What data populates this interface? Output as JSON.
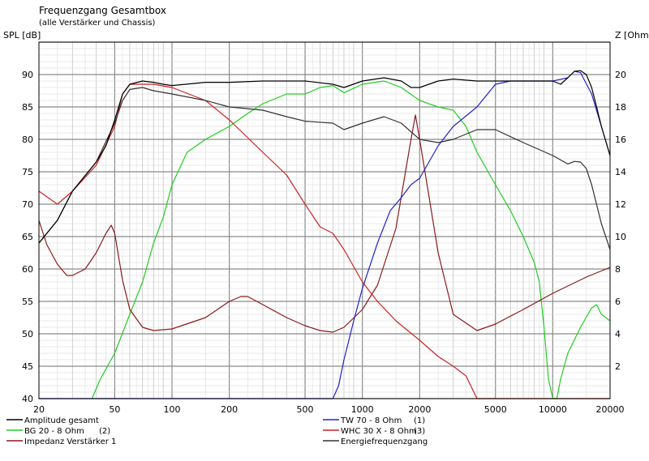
{
  "chart_data": {
    "type": "line",
    "title": "Frequenzgang Gesamtbox",
    "subtitle": "(alle Verstärker und Chassis)",
    "x_scale": "log",
    "xlim": [
      20,
      20000
    ],
    "x_ticks": [
      20,
      50,
      100,
      200,
      500,
      1000,
      2000,
      5000,
      10000,
      20000
    ],
    "y_left": {
      "label": "SPL [dB]",
      "lim": [
        40,
        95
      ],
      "ticks": [
        40,
        45,
        50,
        55,
        60,
        65,
        70,
        75,
        80,
        85,
        90
      ]
    },
    "y_right": {
      "label": "Z [Ohm]",
      "lim": [
        0,
        22
      ],
      "ticks": [
        2,
        4,
        6,
        8,
        10,
        12,
        14,
        16,
        18,
        20
      ]
    },
    "grid": true,
    "legend_position": "bottom",
    "series": [
      {
        "name": "Amplitude gesamt",
        "color": "#000000",
        "axis": "left",
        "prefix": "",
        "suffix": "",
        "points": [
          [
            20,
            64
          ],
          [
            25,
            67.5
          ],
          [
            30,
            72
          ],
          [
            40,
            76.5
          ],
          [
            45,
            79
          ],
          [
            50,
            83
          ],
          [
            55,
            87
          ],
          [
            60,
            88.5
          ],
          [
            70,
            89
          ],
          [
            80,
            88.8
          ],
          [
            90,
            88.5
          ],
          [
            100,
            88.3
          ],
          [
            150,
            88.8
          ],
          [
            200,
            88.8
          ],
          [
            300,
            89
          ],
          [
            500,
            89
          ],
          [
            700,
            88.5
          ],
          [
            800,
            88
          ],
          [
            1000,
            89
          ],
          [
            1300,
            89.5
          ],
          [
            1600,
            89
          ],
          [
            1800,
            88
          ],
          [
            2000,
            88
          ],
          [
            2500,
            89
          ],
          [
            3000,
            89.3
          ],
          [
            4000,
            89
          ],
          [
            5000,
            89
          ],
          [
            7000,
            89
          ],
          [
            10000,
            89
          ],
          [
            11000,
            88.5
          ],
          [
            12000,
            89.5
          ],
          [
            13000,
            90.5
          ],
          [
            14000,
            90.6
          ],
          [
            15000,
            90
          ],
          [
            16000,
            88
          ],
          [
            17000,
            85
          ],
          [
            18000,
            82
          ],
          [
            20000,
            77.5
          ]
        ]
      },
      {
        "name": "BG 20 - 8 Ohm",
        "color": "#22cc22",
        "axis": "left",
        "prefix": "",
        "suffix": "(2)",
        "points": [
          [
            38,
            40
          ],
          [
            42,
            43
          ],
          [
            50,
            47
          ],
          [
            60,
            53
          ],
          [
            70,
            58
          ],
          [
            80,
            64
          ],
          [
            90,
            68
          ],
          [
            100,
            73
          ],
          [
            120,
            78
          ],
          [
            150,
            80
          ],
          [
            200,
            82
          ],
          [
            250,
            84
          ],
          [
            300,
            85.5
          ],
          [
            400,
            87
          ],
          [
            500,
            87
          ],
          [
            600,
            88
          ],
          [
            700,
            88.3
          ],
          [
            800,
            87.2
          ],
          [
            1000,
            88.5
          ],
          [
            1300,
            89
          ],
          [
            1600,
            88
          ],
          [
            2000,
            86
          ],
          [
            2500,
            85
          ],
          [
            3000,
            84.5
          ],
          [
            3500,
            82
          ],
          [
            4000,
            78
          ],
          [
            5000,
            73
          ],
          [
            6000,
            69
          ],
          [
            7000,
            65
          ],
          [
            8000,
            61
          ],
          [
            8500,
            58
          ],
          [
            9000,
            51
          ],
          [
            9500,
            43
          ],
          [
            10000,
            40
          ],
          [
            10500,
            40
          ],
          [
            11000,
            43
          ],
          [
            12000,
            47
          ],
          [
            14000,
            51
          ],
          [
            16000,
            54
          ],
          [
            17000,
            54.5
          ],
          [
            18000,
            53
          ],
          [
            20000,
            52
          ]
        ]
      },
      {
        "name": "Impedanz Verstärker 1",
        "color": "#8b1a1a",
        "axis": "right",
        "prefix": "",
        "suffix": "",
        "points": [
          [
            20,
            11
          ],
          [
            22,
            9.5
          ],
          [
            25,
            8.3
          ],
          [
            28,
            7.6
          ],
          [
            30,
            7.6
          ],
          [
            35,
            8
          ],
          [
            40,
            9
          ],
          [
            45,
            10.2
          ],
          [
            48,
            10.7
          ],
          [
            50,
            10.2
          ],
          [
            52,
            9
          ],
          [
            55,
            7.3
          ],
          [
            60,
            5.5
          ],
          [
            70,
            4.4
          ],
          [
            80,
            4.2
          ],
          [
            100,
            4.3
          ],
          [
            150,
            5
          ],
          [
            200,
            6
          ],
          [
            230,
            6.3
          ],
          [
            250,
            6.3
          ],
          [
            300,
            5.8
          ],
          [
            400,
            5
          ],
          [
            500,
            4.5
          ],
          [
            600,
            4.2
          ],
          [
            700,
            4.1
          ],
          [
            800,
            4.4
          ],
          [
            1000,
            5.5
          ],
          [
            1200,
            7
          ],
          [
            1500,
            10.5
          ],
          [
            1800,
            16
          ],
          [
            1900,
            17.5
          ],
          [
            2000,
            16
          ],
          [
            2500,
            9
          ],
          [
            3000,
            5.2
          ],
          [
            4000,
            4.2
          ],
          [
            5000,
            4.6
          ],
          [
            7000,
            5.5
          ],
          [
            10000,
            6.5
          ],
          [
            15000,
            7.5
          ],
          [
            20000,
            8.1
          ]
        ]
      },
      {
        "name": "TW 70 - 8 Ohm",
        "color": "#2222cc",
        "axis": "left",
        "prefix": "",
        "suffix": "(1)",
        "points": [
          [
            20,
            40
          ],
          [
            700,
            40
          ],
          [
            750,
            42
          ],
          [
            800,
            46
          ],
          [
            900,
            52
          ],
          [
            1000,
            57
          ],
          [
            1200,
            64
          ],
          [
            1400,
            69
          ],
          [
            1600,
            71
          ],
          [
            1800,
            73
          ],
          [
            2000,
            74
          ],
          [
            2500,
            79
          ],
          [
            3000,
            82
          ],
          [
            4000,
            85
          ],
          [
            5000,
            88.5
          ],
          [
            6000,
            89
          ],
          [
            8000,
            89
          ],
          [
            10000,
            89
          ],
          [
            12000,
            89.5
          ],
          [
            13000,
            90.5
          ],
          [
            14000,
            90.3
          ],
          [
            16000,
            87
          ],
          [
            18000,
            82
          ],
          [
            20000,
            77.5
          ]
        ]
      },
      {
        "name": "WHC 30 X - 8 Ohm",
        "color": "#cc2222",
        "axis": "left",
        "prefix": "",
        "suffix": "(3)",
        "points": [
          [
            20,
            72
          ],
          [
            25,
            70
          ],
          [
            30,
            72
          ],
          [
            40,
            76
          ],
          [
            50,
            82
          ],
          [
            55,
            87
          ],
          [
            60,
            88.5
          ],
          [
            70,
            88.5
          ],
          [
            80,
            88.5
          ],
          [
            100,
            88
          ],
          [
            150,
            86
          ],
          [
            200,
            83
          ],
          [
            300,
            78
          ],
          [
            400,
            74.5
          ],
          [
            500,
            70
          ],
          [
            600,
            66.5
          ],
          [
            700,
            65.5
          ],
          [
            800,
            63
          ],
          [
            1000,
            58
          ],
          [
            1200,
            55
          ],
          [
            1500,
            52
          ],
          [
            2000,
            49
          ],
          [
            2500,
            46.5
          ],
          [
            3000,
            45
          ],
          [
            3500,
            43.5
          ],
          [
            4000,
            40
          ],
          [
            20000,
            40
          ]
        ]
      },
      {
        "name": "Energiefrequenzgang",
        "color": "#333333",
        "axis": "left",
        "prefix": "",
        "suffix": "",
        "points": [
          [
            20,
            64
          ],
          [
            25,
            67.5
          ],
          [
            30,
            72
          ],
          [
            40,
            76.5
          ],
          [
            50,
            82.5
          ],
          [
            55,
            86
          ],
          [
            60,
            87.7
          ],
          [
            70,
            88
          ],
          [
            80,
            87.5
          ],
          [
            100,
            87
          ],
          [
            150,
            86
          ],
          [
            200,
            85
          ],
          [
            300,
            84.5
          ],
          [
            400,
            83.5
          ],
          [
            500,
            82.8
          ],
          [
            700,
            82.5
          ],
          [
            800,
            81.5
          ],
          [
            1000,
            82.5
          ],
          [
            1300,
            83.5
          ],
          [
            1600,
            82.5
          ],
          [
            2000,
            80
          ],
          [
            2500,
            79.5
          ],
          [
            3000,
            80
          ],
          [
            4000,
            81.5
          ],
          [
            5000,
            81.5
          ],
          [
            7000,
            79.5
          ],
          [
            10000,
            77.5
          ],
          [
            12000,
            76.2
          ],
          [
            13000,
            76.6
          ],
          [
            14000,
            76.5
          ],
          [
            15000,
            75.5
          ],
          [
            16000,
            73
          ],
          [
            18000,
            67
          ],
          [
            20000,
            63
          ]
        ]
      }
    ]
  }
}
